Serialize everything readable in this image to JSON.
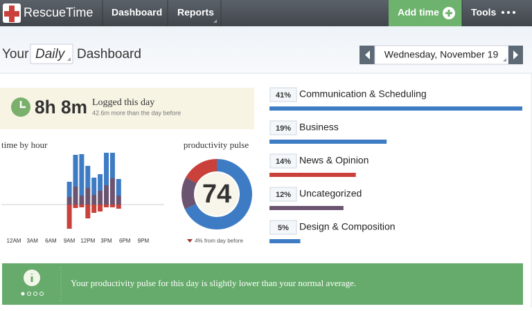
{
  "nav": {
    "logo": "RescueTime",
    "items": [
      "Dashboard",
      "Reports"
    ],
    "add_time": "Add time",
    "tools": "Tools"
  },
  "header": {
    "prefix": "Your",
    "period": "Daily",
    "suffix": "Dashboard",
    "date": "Wednesday, November 19"
  },
  "summary": {
    "total": "8h 8m",
    "title": "Logged this day",
    "subtitle": "42.6m more than the day before"
  },
  "time_by_hour": {
    "title": "time by hour",
    "x_labels": [
      {
        "value": 0,
        "label": "12AM"
      },
      {
        "value": 3,
        "label": "3AM"
      },
      {
        "value": 6,
        "label": "6AM"
      },
      {
        "value": 9,
        "label": "9AM"
      },
      {
        "value": 12,
        "label": "12PM"
      },
      {
        "value": 15,
        "label": "3PM"
      },
      {
        "value": 18,
        "label": "6PM"
      },
      {
        "value": 21,
        "label": "9PM"
      }
    ],
    "hours": [
      9,
      10,
      11,
      12,
      13,
      14,
      15,
      16,
      17
    ],
    "above": [
      {
        "color": "#6b5470",
        "values": [
          11,
          26,
          13,
          24,
          14,
          20,
          28,
          38,
          13
        ]
      },
      {
        "color": "#3d7cc4",
        "values": [
          22,
          46,
          60,
          32,
          25,
          24,
          47,
          37,
          24
        ]
      }
    ],
    "below": [
      {
        "color": "#c9413a",
        "values": [
          35,
          5,
          4,
          20,
          12,
          10,
          4,
          4,
          6
        ]
      }
    ]
  },
  "pulse": {
    "title": "productivity pulse",
    "score": 74,
    "change": "4% from day before",
    "segments": [
      {
        "color": "#3d7cc4",
        "value": 68
      },
      {
        "color": "#6b5470",
        "value": 15
      },
      {
        "color": "#c9413a",
        "value": 17
      }
    ]
  },
  "categories": {
    "names": [
      "Communication & Scheduling",
      "Business",
      "News & Opinion",
      "Uncategorized",
      "Design & Composition"
    ],
    "values": [
      41,
      19,
      14,
      12,
      5
    ],
    "value_labels": [
      "41%",
      "19%",
      "14%",
      "12%",
      "5%"
    ],
    "colors": [
      "#3d7cc4",
      "#3d7cc4",
      "#c9413a",
      "#6b5470",
      "#3d7cc4"
    ]
  },
  "banner": {
    "message": "Your productivity pulse for this day is slightly lower than your normal average."
  }
}
